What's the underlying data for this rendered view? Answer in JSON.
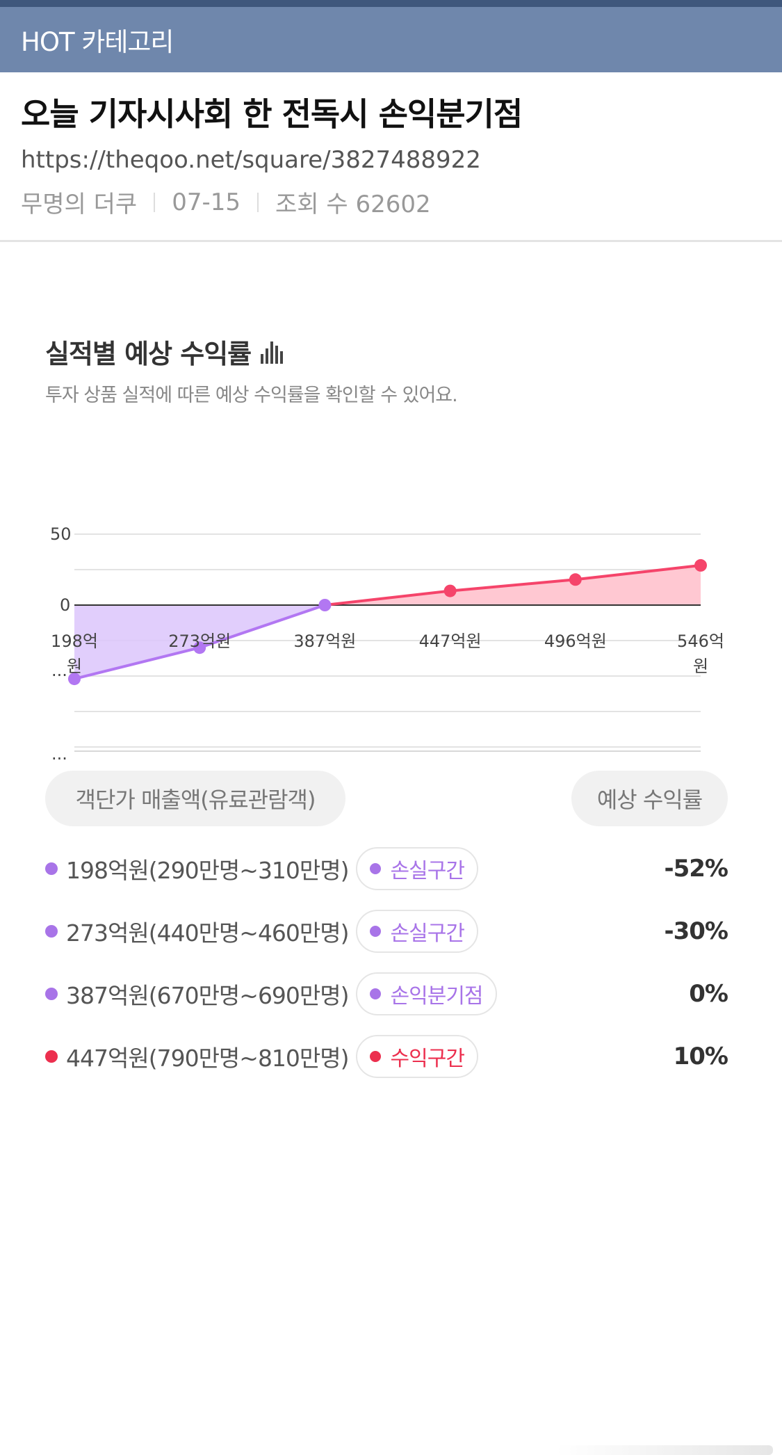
{
  "hot_bar": {
    "label": "HOT 카테고리"
  },
  "post": {
    "title": "오늘 기자시사회 한 전독시 손익분기점",
    "url": "https://theqoo.net/square/3827488922",
    "author": "무명의 더쿠",
    "date": "07-15",
    "views": "조회 수 62602"
  },
  "section": {
    "title": "실적별 예상 수익률",
    "title_icon": "bar-chart-icon",
    "subtitle": "투자 상품 실적에 따른 예상 수익률을 확인할 수 있어요."
  },
  "chart_data": {
    "type": "area",
    "categories": [
      "198억원",
      "273억원",
      "387억원",
      "447억원",
      "496억원",
      "546억원"
    ],
    "series": [
      {
        "values": [
          -52,
          -30,
          0,
          10,
          18,
          28
        ]
      }
    ],
    "y_ticks": [
      "50",
      "0",
      "...",
      "..."
    ],
    "ylim": [
      -100,
      50
    ],
    "loss_color": "#b277f2",
    "loss_fill": "#dcc5fb",
    "profit_color": "#f5446a",
    "profit_fill": "#ffc2cd",
    "grid": true
  },
  "table": {
    "header_left": "객단가 매출액(유료관람객)",
    "header_right": "예상 수익률",
    "rows": [
      {
        "label": "198억원(290만명~310만명)",
        "badge": "손실구간",
        "value": "-52%",
        "color": "#a874e8"
      },
      {
        "label": "273억원(440만명~460만명)",
        "badge": "손실구간",
        "value": "-30%",
        "color": "#a874e8"
      },
      {
        "label": "387억원(670만명~690만명)",
        "badge": "손익분기점",
        "value": "0%",
        "color": "#a874e8"
      },
      {
        "label": "447억원(790만명~810만명)",
        "badge": "수익구간",
        "value": "10%",
        "color": "#ec2f4e"
      }
    ]
  }
}
